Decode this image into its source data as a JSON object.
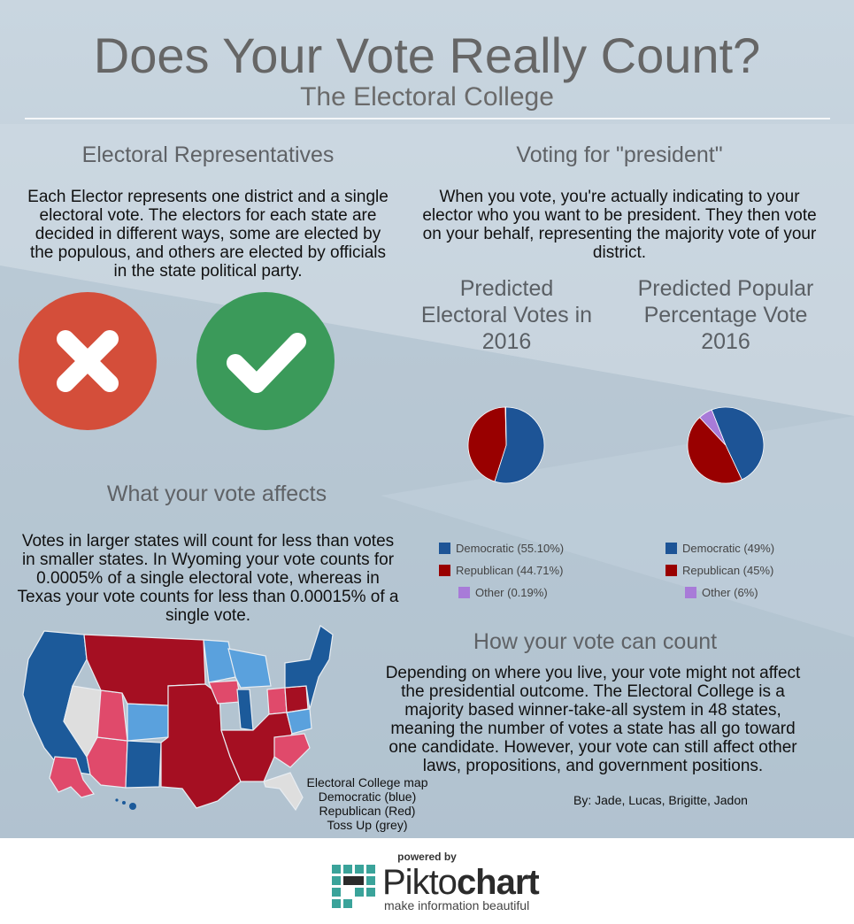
{
  "header": {
    "title": "Does Your Vote Really Count?",
    "subtitle": "The Electoral College"
  },
  "sections": {
    "representatives": {
      "heading": "Electoral Representatives",
      "lines": [
        "Each Elector represents one district and a single",
        "electoral vote. The electors for each state are",
        "decided in different ways, some are elected by",
        "the populous, and others are elected by officials",
        "in the state political party."
      ]
    },
    "voting": {
      "heading": "Voting for \"president\"",
      "lines": [
        "When you vote, you're actually indicating to your",
        "elector who you want to be president. They then vote",
        "on your behalf, representing the majority vote of your",
        "district."
      ]
    },
    "affects": {
      "heading": "What your vote affects",
      "lines": [
        "Votes in larger states will count for less than votes",
        "in smaller states. In Wyoming your vote counts for",
        "0.0005% of a single electoral vote, whereas in",
        "Texas your vote counts for less than 0.00015% of a",
        "single vote."
      ]
    },
    "count": {
      "heading": "How your vote can count",
      "lines": [
        "Depending on where you live, your vote might not affect",
        "the presidential outcome. The Electoral College is a",
        "majority based winner-take-all system in 48 states,",
        "meaning the number of votes a state has all go toward",
        "one candidate. However, your vote can still affect other",
        "laws, propositions, and government positions."
      ]
    }
  },
  "icons": {
    "reject": "x-icon",
    "approve": "checkmark-icon"
  },
  "chart_data": [
    {
      "type": "pie",
      "title_lines": [
        "Predicted",
        "Electoral Votes in",
        "2016"
      ],
      "series": [
        {
          "name": "Democratic (55.10%)",
          "value": 55.1,
          "color": "#1d5496"
        },
        {
          "name": "Republican (44.71%)",
          "value": 44.71,
          "color": "#990000"
        },
        {
          "name": "Other (0.19%)",
          "value": 0.19,
          "color": "#a87bd8"
        }
      ],
      "legend_position": "bottom"
    },
    {
      "type": "pie",
      "title_lines": [
        "Predicted Popular",
        "Percentage Vote",
        "2016"
      ],
      "series": [
        {
          "name": "Democratic (49%)",
          "value": 49,
          "color": "#1d5496"
        },
        {
          "name": "Republican (45%)",
          "value": 45,
          "color": "#990000"
        },
        {
          "name": "Other (6%)",
          "value": 6,
          "color": "#a87bd8"
        }
      ],
      "legend_position": "bottom"
    }
  ],
  "map": {
    "caption_lines": [
      "Electoral College map",
      "Democratic (blue)",
      "Republican (Red)",
      "Toss Up (grey)"
    ],
    "colors": {
      "dem_strong": "#1c5a9a",
      "dem_lean": "#5aa1dd",
      "rep_strong": "#a50f22",
      "rep_lean": "#e04a6b",
      "tossup": "#dedede"
    }
  },
  "byline": "By: Jade, Lucas, Brigitte, Jadon",
  "footer": {
    "powered_by": "powered by",
    "brand_light": "Pikto",
    "brand_bold": "chart",
    "tagline": "make information beautiful"
  }
}
